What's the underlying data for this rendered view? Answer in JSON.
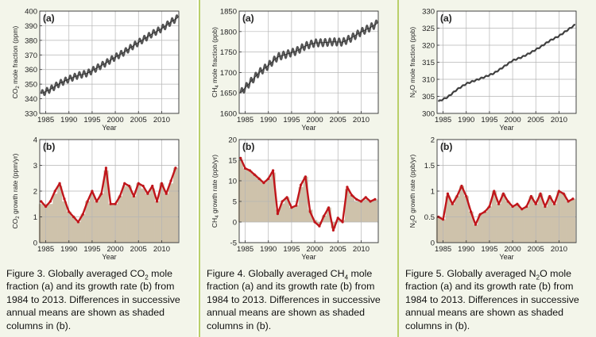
{
  "colors": {
    "panel_bg": "#f3f5ea",
    "divider": "#b9cf6a",
    "series_top": "#555555",
    "series_bottom": "#c0161b",
    "shaded_columns": "#cec2ab",
    "grid": "#b5b5b5"
  },
  "figures": [
    {
      "caption": {
        "pre": "Figure 3. Globally averaged CO",
        "sub": "2",
        "post": " mole fraction (a) and its growth rate (b) from 1984 to 2013. Differences in successive annual means are shown as shaded columns in (b)."
      },
      "top_ylabel": {
        "pre": "CO",
        "sub": "2",
        "post": " mole fraction (ppm)"
      },
      "bottom_ylabel": {
        "pre": "CO",
        "sub": "2",
        "post": " growth rate (ppm/yr)"
      }
    },
    {
      "caption": {
        "pre": "Figure 4. Globally averaged CH",
        "sub": "4",
        "post": " mole fraction (a) and its growth rate (b) from 1984 to 2013. Differences in successive annual means are shown as shaded columns in (b)."
      },
      "top_ylabel": {
        "pre": "CH",
        "sub": "4",
        "post": " mole fraction (ppb)"
      },
      "bottom_ylabel": {
        "pre": "CH",
        "sub": "4",
        "post": " growth rate (ppb/yr)"
      }
    },
    {
      "caption": {
        "pre": "Figure 5. Globally averaged N",
        "sub": "2",
        "post": "O mole fraction (a) and its growth rate (b) from 1984 to 2013. Differences in successive annual means are shown as shaded columns in (b)."
      },
      "top_ylabel": {
        "pre": "N",
        "sub": "2",
        "post": "O mole fraction (ppb)"
      },
      "bottom_ylabel": {
        "pre": "N",
        "sub": "2",
        "post": "O growth rate (ppb/yr)"
      }
    }
  ],
  "chart_data": [
    {
      "type": "line",
      "panel_label": "(a)",
      "xlabel": "Year",
      "ylabel": "CO2 mole fraction (ppm)",
      "xlim": [
        1983.7,
        2013.7
      ],
      "ylim": [
        330,
        400
      ],
      "x_ticks": [
        1985,
        1990,
        1995,
        2000,
        2005,
        2010
      ],
      "y_ticks": [
        330,
        340,
        350,
        360,
        370,
        380,
        390,
        400
      ],
      "grid": true,
      "seasonal_amplitude": 2.2,
      "x": [
        1984,
        1986,
        1988,
        1990,
        1992,
        1994,
        1996,
        1998,
        2000,
        2002,
        2004,
        2006,
        2008,
        2010,
        2012,
        2013.5
      ],
      "values": [
        343.5,
        346.5,
        350.5,
        353.5,
        356.0,
        357.5,
        361.0,
        364.5,
        368.5,
        372.0,
        376.5,
        380.5,
        384.5,
        388.0,
        392.5,
        395.5
      ]
    },
    {
      "type": "line",
      "panel_label": "(b)",
      "xlabel": "Year",
      "ylabel": "CO2 growth rate (ppm/yr)",
      "xlim": [
        1983.7,
        2013.7
      ],
      "ylim": [
        0,
        4
      ],
      "x_ticks": [
        1985,
        1990,
        1995,
        2000,
        2005,
        2010
      ],
      "y_ticks": [
        0,
        1,
        2,
        3,
        4
      ],
      "grid": true,
      "x": [
        1984,
        1985,
        1986,
        1987,
        1988,
        1989,
        1990,
        1991,
        1992,
        1993,
        1994,
        1995,
        1996,
        1997,
        1998,
        1999,
        2000,
        2001,
        2002,
        2003,
        2004,
        2005,
        2006,
        2007,
        2008,
        2009,
        2010,
        2011,
        2012,
        2013
      ],
      "values": [
        1.6,
        1.4,
        1.6,
        2.0,
        2.3,
        1.7,
        1.2,
        1.0,
        0.8,
        1.1,
        1.6,
        2.0,
        1.6,
        1.9,
        2.9,
        1.5,
        1.5,
        1.8,
        2.3,
        2.2,
        1.8,
        2.3,
        2.2,
        1.9,
        2.2,
        1.6,
        2.3,
        1.9,
        2.4,
        2.9
      ],
      "shaded_columns": [
        1.5,
        1.5,
        1.5,
        1.9,
        2.2,
        1.6,
        1.2,
        1.0,
        0.8,
        1.1,
        1.6,
        1.9,
        1.6,
        1.9,
        2.8,
        1.5,
        1.5,
        1.8,
        2.2,
        2.2,
        1.8,
        2.3,
        2.1,
        1.9,
        2.1,
        1.6,
        2.3,
        1.9,
        2.3,
        2.9
      ]
    },
    {
      "type": "line",
      "panel_label": "(a)",
      "xlabel": "Year",
      "ylabel": "CH4 mole fraction (ppb)",
      "xlim": [
        1983.7,
        2013.7
      ],
      "ylim": [
        1600,
        1850
      ],
      "x_ticks": [
        1985,
        1990,
        1995,
        2000,
        2005,
        2010
      ],
      "y_ticks": [
        1600,
        1650,
        1700,
        1750,
        1800,
        1850
      ],
      "grid": true,
      "seasonal_amplitude": 9,
      "x": [
        1984,
        1986,
        1988,
        1990,
        1992,
        1994,
        1996,
        1998,
        2000,
        2002,
        2004,
        2006,
        2008,
        2010,
        2012,
        2013.5
      ],
      "values": [
        1650,
        1675,
        1700,
        1717,
        1738,
        1745,
        1752,
        1765,
        1772,
        1773,
        1775,
        1774,
        1785,
        1799,
        1810,
        1820
      ]
    },
    {
      "type": "line",
      "panel_label": "(b)",
      "xlabel": "Year",
      "ylabel": "CH4 growth rate (ppb/yr)",
      "xlim": [
        1983.7,
        2013.7
      ],
      "ylim": [
        -5,
        20
      ],
      "x_ticks": [
        1985,
        1990,
        1995,
        2000,
        2005,
        2010
      ],
      "y_ticks": [
        -5,
        0,
        5,
        10,
        15,
        20
      ],
      "grid": true,
      "x": [
        1984,
        1985,
        1986,
        1987,
        1988,
        1989,
        1990,
        1991,
        1992,
        1993,
        1994,
        1995,
        1996,
        1997,
        1998,
        1999,
        2000,
        2001,
        2002,
        2003,
        2004,
        2005,
        2006,
        2007,
        2008,
        2009,
        2010,
        2011,
        2012,
        2013
      ],
      "values": [
        15.5,
        13.0,
        12.5,
        11.5,
        10.5,
        9.5,
        10.5,
        12.5,
        2.0,
        5.0,
        6.0,
        3.5,
        4.0,
        9.0,
        11.0,
        2.5,
        0.0,
        -1.0,
        1.5,
        3.5,
        -2.0,
        1.0,
        0.0,
        8.5,
        6.5,
        5.5,
        5.0,
        6.0,
        5.0,
        5.5
      ],
      "shaded_columns": [
        15,
        13,
        12.5,
        11.5,
        10.5,
        9.5,
        10.5,
        12,
        3,
        4.5,
        6,
        3.5,
        4,
        8.5,
        11,
        3,
        0.5,
        -0.5,
        1.5,
        3.5,
        -1.5,
        0.5,
        0.5,
        8,
        6.5,
        5,
        5,
        5.5,
        5,
        5.5
      ]
    },
    {
      "type": "line",
      "panel_label": "(a)",
      "xlabel": "Year",
      "ylabel": "N2O mole fraction (ppb)",
      "xlim": [
        1983.7,
        2013.7
      ],
      "ylim": [
        300,
        330
      ],
      "x_ticks": [
        1985,
        1990,
        1995,
        2000,
        2005,
        2010
      ],
      "y_ticks": [
        300,
        305,
        310,
        315,
        320,
        325,
        330
      ],
      "grid": true,
      "seasonal_amplitude": 0.2,
      "x": [
        1984,
        1986,
        1988,
        1990,
        1992,
        1994,
        1996,
        1998,
        2000,
        2002,
        2004,
        2006,
        2008,
        2010,
        2012,
        2013.5
      ],
      "values": [
        303.5,
        304.8,
        307.0,
        308.7,
        309.7,
        310.7,
        311.8,
        313.6,
        315.5,
        316.5,
        317.9,
        319.5,
        321.3,
        322.7,
        324.6,
        326.0
      ]
    },
    {
      "type": "line",
      "panel_label": "(b)",
      "xlabel": "Year",
      "ylabel": "N2O growth rate (ppb/yr)",
      "xlim": [
        1983.7,
        2013.7
      ],
      "ylim": [
        0,
        2
      ],
      "x_ticks": [
        1985,
        1990,
        1995,
        2000,
        2005,
        2010
      ],
      "y_ticks": [
        0,
        0.5,
        1,
        1.5,
        2
      ],
      "grid": true,
      "x": [
        1984,
        1985,
        1986,
        1987,
        1988,
        1989,
        1990,
        1991,
        1992,
        1993,
        1994,
        1995,
        1996,
        1997,
        1998,
        1999,
        2000,
        2001,
        2002,
        2003,
        2004,
        2005,
        2006,
        2007,
        2008,
        2009,
        2010,
        2011,
        2012,
        2013
      ],
      "values": [
        0.5,
        0.45,
        0.95,
        0.75,
        0.9,
        1.1,
        0.9,
        0.6,
        0.35,
        0.55,
        0.6,
        0.7,
        1.0,
        0.75,
        0.95,
        0.8,
        0.7,
        0.75,
        0.65,
        0.7,
        0.9,
        0.75,
        0.95,
        0.7,
        0.9,
        0.75,
        1.0,
        0.95,
        0.8,
        0.85
      ],
      "shaded_columns": [
        0.5,
        0.45,
        0.9,
        0.75,
        0.9,
        1.1,
        0.9,
        0.6,
        0.35,
        0.55,
        0.6,
        0.7,
        1.0,
        0.75,
        0.95,
        0.8,
        0.7,
        0.75,
        0.65,
        0.7,
        0.9,
        0.75,
        0.95,
        0.7,
        0.9,
        0.75,
        1.0,
        0.95,
        0.8,
        0.85
      ]
    }
  ]
}
